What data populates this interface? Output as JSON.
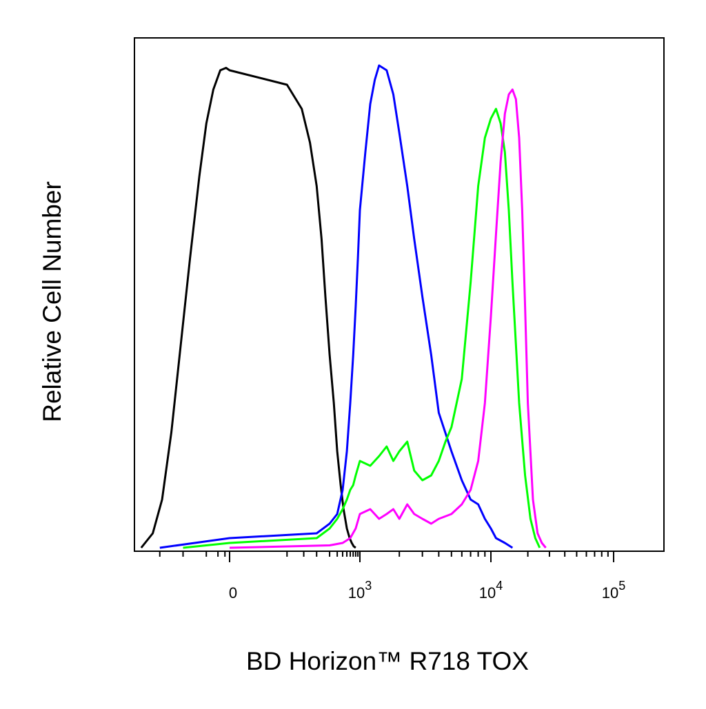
{
  "chart_data": {
    "type": "line",
    "title": "",
    "xlabel": "BD Horizon™ R718 TOX",
    "ylabel": "Relative Cell Number",
    "x_scale": "biexponential",
    "x_ticks": [
      {
        "value": 0,
        "base": "0",
        "exp": ""
      },
      {
        "value": 1000,
        "base": "10",
        "exp": "3"
      },
      {
        "value": 10000,
        "base": "10",
        "exp": "4"
      },
      {
        "value": 100000,
        "base": "10",
        "exp": "5"
      }
    ],
    "xlim": [
      -400,
      200000
    ],
    "ylim": [
      0,
      100
    ],
    "grid": false,
    "legend": "none",
    "series": [
      {
        "color": "#000000",
        "x": [
          -380,
          -330,
          -290,
          -250,
          -210,
          -170,
          -130,
          -100,
          -70,
          -40,
          -15,
          0,
          20,
          45,
          70,
          100,
          130,
          160,
          200,
          250,
          300,
          360,
          420,
          500,
          580,
          650,
          720,
          800
        ],
        "y": [
          0,
          3,
          10,
          24,
          42,
          60,
          77,
          88,
          95,
          99,
          99.5,
          99,
          96,
          91,
          84,
          75,
          64,
          52,
          40,
          30,
          20,
          13,
          8,
          4,
          2,
          1,
          0.3,
          0
        ]
      },
      {
        "color": "#0000ff",
        "x": [
          -300,
          -150,
          0,
          100,
          200,
          300,
          400,
          500,
          600,
          700,
          800,
          900,
          1000,
          1100,
          1200,
          1300,
          1400,
          1600,
          1800,
          2000,
          2300,
          2600,
          3000,
          3500,
          4000,
          5000,
          6000,
          7000,
          8000,
          9000,
          10000,
          11000,
          13000,
          15000
        ],
        "y": [
          0,
          1,
          2,
          3,
          5,
          7,
          12,
          20,
          30,
          40,
          50,
          60,
          70,
          82,
          92,
          97,
          100,
          99,
          94,
          86,
          75,
          64,
          52,
          40,
          28,
          20,
          14,
          10,
          9,
          6,
          4,
          2,
          1,
          0
        ]
      },
      {
        "color": "#00ff00",
        "x": [
          -200,
          0,
          100,
          200,
          300,
          400,
          500,
          600,
          700,
          800,
          1000,
          1200,
          1400,
          1600,
          1800,
          2000,
          2300,
          2600,
          3000,
          3500,
          4000,
          4500,
          5000,
          6000,
          7000,
          8000,
          9000,
          10000,
          11000,
          12000,
          13000,
          14000,
          15000,
          17000,
          19000,
          21000,
          23000,
          25000
        ],
        "y": [
          0,
          1,
          2,
          4,
          6,
          8,
          10,
          12,
          13,
          15,
          18,
          17,
          19,
          21,
          18,
          20,
          22,
          16,
          14,
          15,
          18,
          22,
          25,
          35,
          55,
          75,
          85,
          89,
          91,
          88,
          82,
          70,
          55,
          30,
          15,
          6,
          2,
          0
        ]
      },
      {
        "color": "#ff00ff",
        "x": [
          0,
          200,
          400,
          600,
          800,
          1000,
          1200,
          1400,
          1600,
          1800,
          2000,
          2300,
          2600,
          3000,
          3500,
          4000,
          5000,
          6000,
          7000,
          8000,
          9000,
          10000,
          11000,
          12000,
          13000,
          14000,
          15000,
          16000,
          17000,
          18000,
          19000,
          20000,
          22000,
          24000,
          26000,
          28000
        ],
        "y": [
          0,
          0.5,
          1,
          2,
          4,
          7,
          8,
          6,
          7,
          8,
          6,
          9,
          7,
          6,
          5,
          6,
          7,
          9,
          12,
          18,
          30,
          48,
          65,
          80,
          90,
          94,
          95,
          93,
          85,
          70,
          50,
          30,
          10,
          3,
          1,
          0
        ]
      }
    ]
  }
}
